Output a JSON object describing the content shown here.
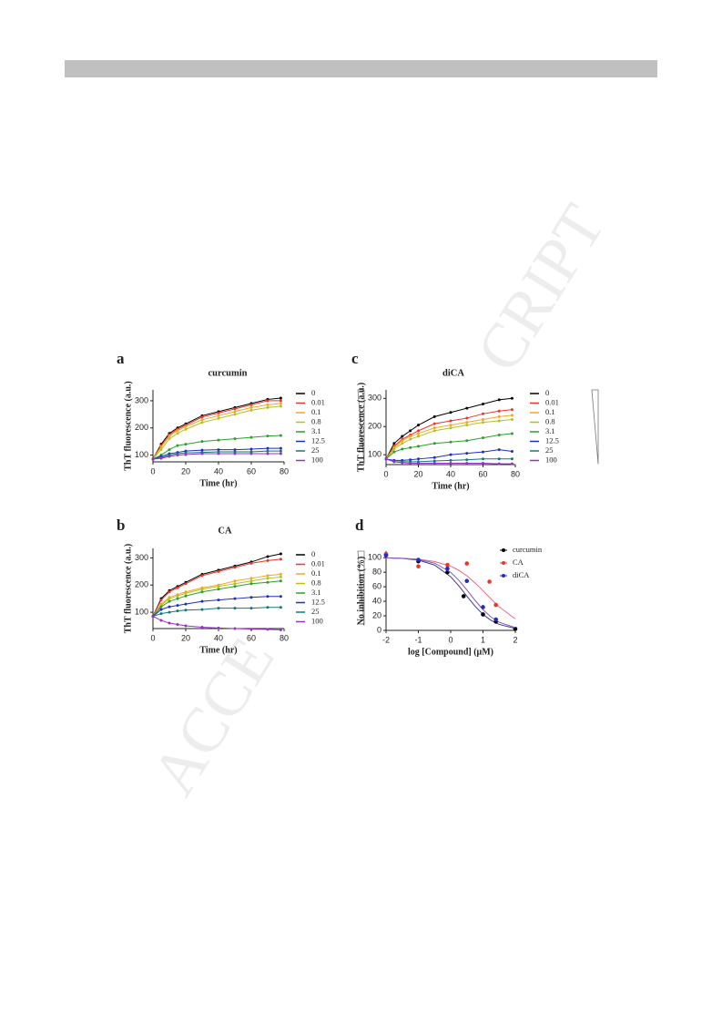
{
  "watermark": [
    "CRIPT",
    "ACCE"
  ],
  "chart_data": [
    {
      "type": "line",
      "panel_label": "a",
      "title": "curcumin",
      "ylabel": "ThT fluorescence (a.u.)",
      "xlabel": "Time (hr)",
      "x": [
        0,
        5,
        10,
        15,
        20,
        30,
        40,
        50,
        60,
        70,
        78
      ],
      "xlim": [
        0,
        80
      ],
      "xticks": [
        0,
        20,
        40,
        60,
        80
      ],
      "ylim": [
        75,
        340
      ],
      "yticks": [
        100,
        200,
        300
      ],
      "series": [
        {
          "name": "0",
          "color": "#000000",
          "values": [
            85,
            140,
            180,
            200,
            215,
            245,
            260,
            275,
            290,
            305,
            310
          ]
        },
        {
          "name": "0.01",
          "color": "#e8372a",
          "values": [
            85,
            135,
            175,
            195,
            210,
            240,
            255,
            270,
            285,
            300,
            300
          ]
        },
        {
          "name": "0.1",
          "color": "#f5a623",
          "values": [
            85,
            130,
            170,
            190,
            205,
            230,
            245,
            260,
            275,
            285,
            290
          ]
        },
        {
          "name": "0.8",
          "color": "#b5c21e",
          "values": [
            85,
            120,
            160,
            180,
            195,
            220,
            235,
            250,
            265,
            275,
            280
          ]
        },
        {
          "name": "3.1",
          "color": "#2ca02c",
          "values": [
            85,
            100,
            120,
            135,
            140,
            150,
            155,
            160,
            165,
            170,
            172
          ]
        },
        {
          "name": "12.5",
          "color": "#1f2fbf",
          "values": [
            85,
            95,
            105,
            110,
            115,
            118,
            120,
            120,
            122,
            125,
            125
          ]
        },
        {
          "name": "25",
          "color": "#127a7a",
          "values": [
            85,
            90,
            100,
            105,
            108,
            110,
            112,
            112,
            112,
            115,
            115
          ]
        },
        {
          "name": "100",
          "color": "#9b2fc9",
          "values": [
            85,
            88,
            95,
            100,
            102,
            105,
            105,
            105,
            105,
            105,
            105
          ]
        }
      ]
    },
    {
      "type": "line",
      "panel_label": "b",
      "title": "CA",
      "ylabel": "ThT fluorescence (a.u.)",
      "xlabel": "Time (hr)",
      "x": [
        0,
        5,
        10,
        15,
        20,
        30,
        40,
        50,
        60,
        70,
        78
      ],
      "xlim": [
        0,
        80
      ],
      "xticks": [
        0,
        20,
        40,
        60,
        80
      ],
      "ylim": [
        40,
        335
      ],
      "yticks": [
        100,
        200,
        300
      ],
      "series": [
        {
          "name": "0",
          "color": "#000000",
          "values": [
            85,
            150,
            180,
            195,
            210,
            240,
            255,
            270,
            285,
            305,
            315
          ]
        },
        {
          "name": "0.01",
          "color": "#e8372a",
          "values": [
            85,
            145,
            175,
            190,
            205,
            235,
            250,
            265,
            280,
            290,
            295
          ]
        },
        {
          "name": "0.1",
          "color": "#f5a623",
          "values": [
            85,
            130,
            155,
            165,
            175,
            190,
            200,
            215,
            225,
            235,
            240
          ]
        },
        {
          "name": "0.8",
          "color": "#b5c21e",
          "values": [
            85,
            125,
            150,
            160,
            170,
            185,
            195,
            205,
            215,
            225,
            230
          ]
        },
        {
          "name": "3.1",
          "color": "#2ca02c",
          "values": [
            85,
            120,
            140,
            150,
            160,
            175,
            185,
            195,
            205,
            210,
            215
          ]
        },
        {
          "name": "12.5",
          "color": "#1f2fbf",
          "values": [
            85,
            110,
            120,
            125,
            130,
            140,
            145,
            150,
            155,
            158,
            158
          ]
        },
        {
          "name": "25",
          "color": "#127a7a",
          "values": [
            85,
            95,
            100,
            105,
            108,
            110,
            115,
            115,
            115,
            118,
            118
          ]
        },
        {
          "name": "100",
          "color": "#9b2fc9",
          "values": [
            85,
            70,
            60,
            55,
            50,
            45,
            42,
            40,
            38,
            37,
            35
          ]
        }
      ]
    },
    {
      "type": "line",
      "panel_label": "c",
      "title": "diCA",
      "ylabel": "ThT fluorescence (a.u.)",
      "xlabel": "Time (hr)",
      "x": [
        0,
        5,
        10,
        15,
        20,
        30,
        40,
        50,
        60,
        70,
        78
      ],
      "xlim": [
        0,
        80
      ],
      "xticks": [
        0,
        20,
        40,
        60,
        80
      ],
      "ylim": [
        65,
        330
      ],
      "yticks": [
        100,
        200,
        300
      ],
      "series": [
        {
          "name": "0",
          "color": "#000000",
          "values": [
            85,
            140,
            165,
            185,
            205,
            235,
            250,
            265,
            280,
            295,
            300
          ]
        },
        {
          "name": "0.01",
          "color": "#e8372a",
          "values": [
            85,
            130,
            155,
            170,
            185,
            210,
            220,
            230,
            245,
            255,
            260
          ]
        },
        {
          "name": "0.1",
          "color": "#f5a623",
          "values": [
            85,
            125,
            150,
            165,
            175,
            195,
            205,
            215,
            225,
            235,
            240
          ]
        },
        {
          "name": "0.8",
          "color": "#b5c21e",
          "values": [
            85,
            120,
            140,
            155,
            165,
            185,
            195,
            205,
            215,
            220,
            225
          ]
        },
        {
          "name": "3.1",
          "color": "#2ca02c",
          "values": [
            85,
            110,
            120,
            125,
            130,
            140,
            145,
            150,
            160,
            170,
            175
          ]
        },
        {
          "name": "12.5",
          "color": "#1f2fbf",
          "values": [
            85,
            80,
            80,
            82,
            85,
            90,
            100,
            105,
            110,
            118,
            112
          ]
        },
        {
          "name": "25",
          "color": "#127a7a",
          "values": [
            85,
            75,
            75,
            75,
            75,
            78,
            80,
            82,
            85,
            85,
            85
          ]
        },
        {
          "name": "100",
          "color": "#9b2fc9",
          "values": [
            85,
            75,
            72,
            70,
            70,
            70,
            70,
            70,
            70,
            68,
            68
          ]
        }
      ]
    },
    {
      "type": "scatter",
      "panel_label": "d",
      "ylabel": "No inhibition (%)",
      "xlabel": "log [Compound] (μM)",
      "xlim": [
        -2,
        2
      ],
      "xticks": [
        -2,
        -1,
        0,
        1,
        2
      ],
      "ylim": [
        0,
        109
      ],
      "yticks": [
        0,
        20,
        40,
        60,
        80,
        100
      ],
      "fit_x": [
        -2,
        -1.5,
        -1,
        -0.5,
        0,
        0.25,
        0.5,
        0.75,
        1,
        1.25,
        1.5,
        2
      ],
      "series": [
        {
          "name": "curcumin",
          "color": "#000000",
          "fit_color": "#3a3a9a",
          "x": [
            -2,
            -1,
            -0.1,
            0.4,
            1,
            1.4,
            2
          ],
          "values": [
            104,
            95,
            80,
            47,
            22,
            12,
            2
          ],
          "fit": [
            99.6,
            98.9,
            96.6,
            89.9,
            73.8,
            61.3,
            47.1,
            33.4,
            22,
            13.7,
            8.2,
            2.7
          ]
        },
        {
          "name": "CA",
          "color": "#e8372a",
          "fit_color": "#e86a8a",
          "x": [
            -2,
            -1,
            -0.1,
            0.5,
            1.2,
            1.4
          ],
          "values": [
            105,
            88,
            90,
            92,
            67,
            35
          ],
          "fit": [
            99.7,
            99.2,
            97.9,
            94.7,
            88.2,
            82.7,
            75.1,
            65.4,
            54.6,
            43.1,
            32.4,
            15.8
          ]
        },
        {
          "name": "diCA",
          "color": "#1f2fbf",
          "fit_color": "#8a5ab8",
          "x": [
            -2,
            -1,
            -0.1,
            0.5,
            1,
            1.4
          ],
          "values": [
            103,
            97,
            85,
            68,
            32,
            15
          ],
          "fit": [
            99.7,
            99.2,
            97.5,
            92.6,
            79.9,
            69,
            55.7,
            41.5,
            28.5,
            18.3,
            11.2,
            3.8
          ]
        }
      ]
    }
  ]
}
